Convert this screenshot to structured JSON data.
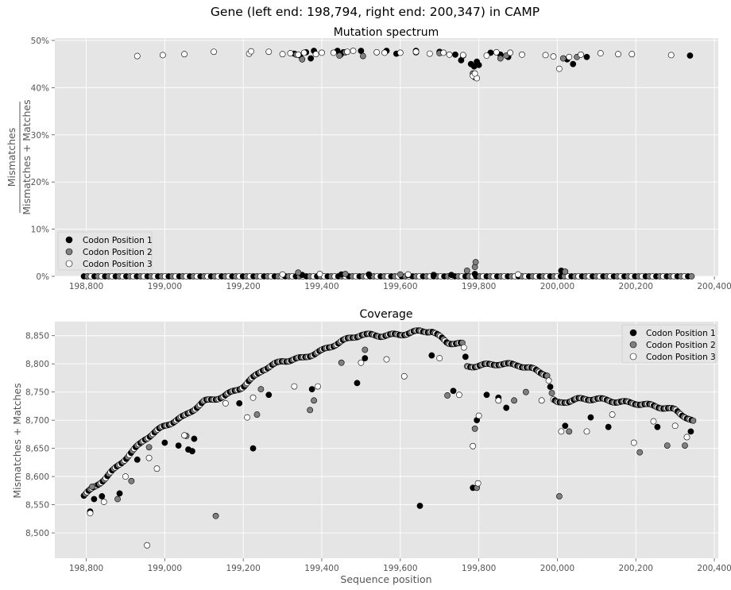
{
  "figure": {
    "suptitle": "Gene (left end: 198,794, right end: 200,347) in CAMP"
  },
  "colors": {
    "panel_background": "#e5e5e5",
    "grid": "#ffffff",
    "codon1": "#000000",
    "codon2": "#808080",
    "codon3": "#ffffff",
    "marker_edge": "#000000"
  },
  "legend": {
    "entries": [
      "Codon Position 1",
      "Codon Position 2",
      "Codon Position 3"
    ]
  },
  "chart_data": [
    {
      "type": "scatter",
      "title": "Mutation spectrum",
      "ylabel_numerator": "Mismatches",
      "ylabel_denominator": "Mismatches + Matches",
      "xlabel": "",
      "xlim": [
        198720,
        200410
      ],
      "ylim": [
        0,
        0.505
      ],
      "grid": true,
      "legend_position": "lower-left",
      "x_ticks": [
        198800,
        199000,
        199200,
        199400,
        199600,
        199800,
        200000,
        200200,
        200400
      ],
      "x_tick_labels": [
        "198,800",
        "199,000",
        "199,200",
        "199,400",
        "199,600",
        "199,800",
        "200,000",
        "200,200",
        "200,400"
      ],
      "y_ticks": [
        0,
        0.1,
        0.2,
        0.3,
        0.4,
        0.5
      ],
      "y_tick_labels": [
        "0%",
        "10%",
        "20%",
        "30%",
        "40%",
        "50%"
      ],
      "baseline_x_range": [
        198794,
        200347
      ],
      "series": [
        {
          "name": "Codon Position 1",
          "x": [
            199330,
            199345,
            199360,
            199372,
            199380,
            199440,
            199448,
            199455,
            199500,
            199565,
            199590,
            199640,
            199700,
            199740,
            199755,
            199780,
            199788,
            199795,
            199800,
            199830,
            199855,
            199875,
            200025,
            200040,
            200075,
            200338,
            199350,
            199520,
            199620,
            199730,
            199790,
            200010,
            199450,
            199685
          ],
          "y": [
            0.472,
            0.468,
            0.475,
            0.462,
            0.478,
            0.478,
            0.47,
            0.475,
            0.478,
            0.478,
            0.472,
            0.478,
            0.476,
            0.47,
            0.458,
            0.45,
            0.445,
            0.455,
            0.448,
            0.474,
            0.47,
            0.465,
            0.46,
            0.45,
            0.465,
            0.468,
            0.003,
            0.004,
            0.003,
            0.003,
            0.005,
            0.012,
            0.004,
            0.003
          ]
        },
        {
          "name": "Codon Position 2",
          "x": [
            199335,
            199350,
            199445,
            199460,
            199505,
            199640,
            199700,
            199760,
            199785,
            199790,
            199855,
            199870,
            200015,
            200050,
            199340,
            199460,
            199770,
            199790,
            199792,
            200020,
            199600
          ],
          "y": [
            0.47,
            0.46,
            0.468,
            0.475,
            0.467,
            0.475,
            0.473,
            0.468,
            0.43,
            0.422,
            0.462,
            0.468,
            0.462,
            0.465,
            0.008,
            0.005,
            0.012,
            0.02,
            0.03,
            0.01,
            0.004
          ]
        },
        {
          "name": "Codon Position 3",
          "x": [
            198930,
            198995,
            199050,
            199125,
            199215,
            199220,
            199265,
            199300,
            199320,
            199340,
            199355,
            199385,
            199400,
            199430,
            199465,
            199480,
            199540,
            199560,
            199600,
            199640,
            199675,
            199710,
            199725,
            199760,
            199785,
            199795,
            199820,
            199845,
            199880,
            199910,
            199970,
            199990,
            200005,
            200030,
            200060,
            200110,
            200155,
            200190,
            200290,
            199790,
            199300,
            199395,
            199620,
            199900
          ],
          "y": [
            0.467,
            0.469,
            0.471,
            0.476,
            0.472,
            0.477,
            0.476,
            0.471,
            0.473,
            0.47,
            0.474,
            0.471,
            0.474,
            0.474,
            0.476,
            0.478,
            0.475,
            0.474,
            0.474,
            0.476,
            0.472,
            0.474,
            0.47,
            0.469,
            0.425,
            0.42,
            0.468,
            0.475,
            0.474,
            0.47,
            0.469,
            0.466,
            0.44,
            0.465,
            0.47,
            0.473,
            0.471,
            0.471,
            0.469,
            0.43,
            0.004,
            0.005,
            0.004,
            0.004
          ]
        }
      ]
    },
    {
      "type": "scatter",
      "title": "Coverage",
      "xlabel": "Sequence position",
      "ylabel": "Mismatches + Matches",
      "xlim": [
        198720,
        200410
      ],
      "ylim": [
        8455,
        8875
      ],
      "grid": true,
      "legend_position": "top-right",
      "x_ticks": [
        198800,
        199000,
        199200,
        199400,
        199600,
        199800,
        200000,
        200200,
        200400
      ],
      "x_tick_labels": [
        "198,800",
        "199,000",
        "199,200",
        "199,400",
        "199,600",
        "199,800",
        "200,000",
        "200,200",
        "200,400"
      ],
      "y_ticks": [
        8500,
        8550,
        8600,
        8650,
        8700,
        8750,
        8800,
        8850
      ],
      "y_tick_labels": [
        "8,500",
        "8,550",
        "8,600",
        "8,650",
        "8,700",
        "8,750",
        "8,800",
        "8,850"
      ],
      "trend": {
        "x": [
          198794,
          198850,
          198900,
          198950,
          199000,
          199050,
          199100,
          199150,
          199200,
          199250,
          199300,
          199350,
          199400,
          199450,
          199500,
          199550,
          199600,
          199650,
          199680,
          199720,
          199760,
          199770,
          199800,
          199850,
          199900,
          199940,
          199975,
          199990,
          200000,
          200050,
          200100,
          200150,
          200200,
          200250,
          200300,
          200347
        ],
        "y": [
          8566,
          8598,
          8632,
          8667,
          8690,
          8707,
          8733,
          8742,
          8760,
          8790,
          8805,
          8810,
          8823,
          8840,
          8852,
          8850,
          8852,
          8858,
          8858,
          8838,
          8835,
          8795,
          8797,
          8800,
          8798,
          8790,
          8780,
          8735,
          8730,
          8737,
          8738,
          8733,
          8730,
          8725,
          8718,
          8697
        ]
      },
      "outliers": [
        {
          "series": 0,
          "x": 198810,
          "y": 8538
        },
        {
          "series": 0,
          "x": 198820,
          "y": 8560
        },
        {
          "series": 0,
          "x": 198840,
          "y": 8565
        },
        {
          "series": 0,
          "x": 198885,
          "y": 8570
        },
        {
          "series": 0,
          "x": 198930,
          "y": 8630
        },
        {
          "series": 0,
          "x": 199000,
          "y": 8660
        },
        {
          "series": 0,
          "x": 199035,
          "y": 8655
        },
        {
          "series": 0,
          "x": 199060,
          "y": 8648
        },
        {
          "series": 0,
          "x": 199070,
          "y": 8645
        },
        {
          "series": 0,
          "x": 199075,
          "y": 8667
        },
        {
          "series": 0,
          "x": 199190,
          "y": 8730
        },
        {
          "series": 0,
          "x": 199225,
          "y": 8650
        },
        {
          "series": 0,
          "x": 199265,
          "y": 8745
        },
        {
          "series": 0,
          "x": 199375,
          "y": 8755
        },
        {
          "series": 0,
          "x": 199490,
          "y": 8766
        },
        {
          "series": 0,
          "x": 199510,
          "y": 8810
        },
        {
          "series": 0,
          "x": 199650,
          "y": 8548
        },
        {
          "series": 0,
          "x": 199680,
          "y": 8815
        },
        {
          "series": 0,
          "x": 199735,
          "y": 8752
        },
        {
          "series": 0,
          "x": 199785,
          "y": 8580
        },
        {
          "series": 0,
          "x": 199795,
          "y": 8700
        },
        {
          "series": 0,
          "x": 199820,
          "y": 8745
        },
        {
          "series": 0,
          "x": 199850,
          "y": 8740
        },
        {
          "series": 0,
          "x": 199870,
          "y": 8722
        },
        {
          "series": 0,
          "x": 200020,
          "y": 8690
        },
        {
          "series": 0,
          "x": 200085,
          "y": 8705
        },
        {
          "series": 0,
          "x": 200130,
          "y": 8688
        },
        {
          "series": 0,
          "x": 200255,
          "y": 8688
        },
        {
          "series": 0,
          "x": 200340,
          "y": 8680
        },
        {
          "series": 1,
          "x": 198815,
          "y": 8582
        },
        {
          "series": 1,
          "x": 198880,
          "y": 8560
        },
        {
          "series": 1,
          "x": 198915,
          "y": 8592
        },
        {
          "series": 1,
          "x": 198960,
          "y": 8652
        },
        {
          "series": 1,
          "x": 199055,
          "y": 8672
        },
        {
          "series": 1,
          "x": 199130,
          "y": 8530
        },
        {
          "series": 1,
          "x": 199235,
          "y": 8710
        },
        {
          "series": 1,
          "x": 199245,
          "y": 8755
        },
        {
          "series": 1,
          "x": 199370,
          "y": 8718
        },
        {
          "series": 1,
          "x": 199380,
          "y": 8735
        },
        {
          "series": 1,
          "x": 199450,
          "y": 8802
        },
        {
          "series": 1,
          "x": 199510,
          "y": 8825
        },
        {
          "series": 1,
          "x": 199720,
          "y": 8744
        },
        {
          "series": 1,
          "x": 199790,
          "y": 8685
        },
        {
          "series": 1,
          "x": 199795,
          "y": 8580
        },
        {
          "series": 1,
          "x": 199890,
          "y": 8735
        },
        {
          "series": 1,
          "x": 199920,
          "y": 8750
        },
        {
          "series": 1,
          "x": 200005,
          "y": 8565
        },
        {
          "series": 1,
          "x": 200030,
          "y": 8680
        },
        {
          "series": 1,
          "x": 200210,
          "y": 8643
        },
        {
          "series": 1,
          "x": 200280,
          "y": 8655
        },
        {
          "series": 1,
          "x": 200325,
          "y": 8655
        },
        {
          "series": 2,
          "x": 198810,
          "y": 8535
        },
        {
          "series": 2,
          "x": 198845,
          "y": 8555
        },
        {
          "series": 2,
          "x": 198900,
          "y": 8600
        },
        {
          "series": 2,
          "x": 198955,
          "y": 8478
        },
        {
          "series": 2,
          "x": 198960,
          "y": 8633
        },
        {
          "series": 2,
          "x": 198980,
          "y": 8614
        },
        {
          "series": 2,
          "x": 199050,
          "y": 8673
        },
        {
          "series": 2,
          "x": 199155,
          "y": 8730
        },
        {
          "series": 2,
          "x": 199210,
          "y": 8705
        },
        {
          "series": 2,
          "x": 199225,
          "y": 8740
        },
        {
          "series": 2,
          "x": 199330,
          "y": 8760
        },
        {
          "series": 2,
          "x": 199390,
          "y": 8760
        },
        {
          "series": 2,
          "x": 199500,
          "y": 8802
        },
        {
          "series": 2,
          "x": 199565,
          "y": 8808
        },
        {
          "series": 2,
          "x": 199610,
          "y": 8778
        },
        {
          "series": 2,
          "x": 199700,
          "y": 8810
        },
        {
          "series": 2,
          "x": 199750,
          "y": 8745
        },
        {
          "series": 2,
          "x": 199785,
          "y": 8654
        },
        {
          "series": 2,
          "x": 199798,
          "y": 8588
        },
        {
          "series": 2,
          "x": 199800,
          "y": 8708
        },
        {
          "series": 2,
          "x": 199850,
          "y": 8735
        },
        {
          "series": 2,
          "x": 199960,
          "y": 8735
        },
        {
          "series": 2,
          "x": 200010,
          "y": 8680
        },
        {
          "series": 2,
          "x": 200075,
          "y": 8680
        },
        {
          "series": 2,
          "x": 200140,
          "y": 8710
        },
        {
          "series": 2,
          "x": 200195,
          "y": 8660
        },
        {
          "series": 2,
          "x": 200245,
          "y": 8698
        },
        {
          "series": 2,
          "x": 200300,
          "y": 8690
        },
        {
          "series": 2,
          "x": 200330,
          "y": 8670
        }
      ]
    }
  ]
}
